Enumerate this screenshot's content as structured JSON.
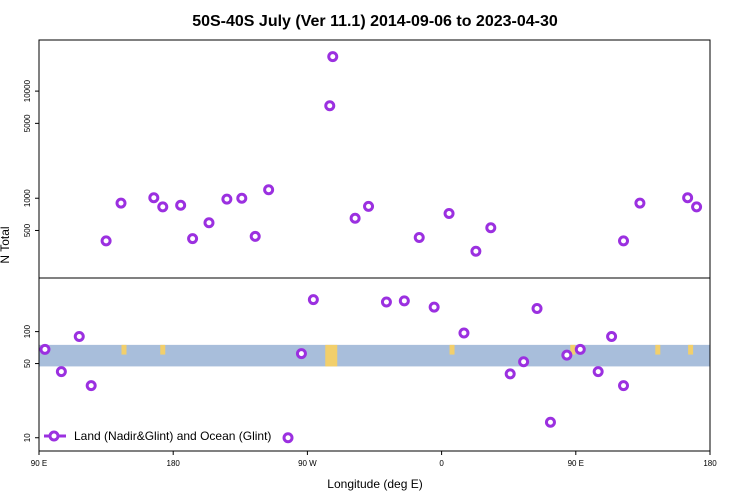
{
  "chart_data": {
    "type": "scatter",
    "title": "50S-40S July (Ver 11.1)   2014-09-06 to 2023-04-30",
    "xlabel": "Longitude (deg E)",
    "ylabel": "N Total",
    "x_ticks": [
      {
        "lon": 90,
        "label": "90 E"
      },
      {
        "lon": 180,
        "label": "180"
      },
      {
        "lon": 270,
        "label": "90 W"
      },
      {
        "lon": 360,
        "label": "0"
      },
      {
        "lon": 450,
        "label": "90 E"
      },
      {
        "lon": 540,
        "label": "180"
      }
    ],
    "xlim": [
      90,
      540
    ],
    "top_panel": {
      "scale": "log",
      "ylim": [
        180,
        30000
      ],
      "y_ticks": [
        {
          "value": 500,
          "label": "500"
        },
        {
          "value": 1000,
          "label": "1000"
        },
        {
          "value": 5000,
          "label": "5000"
        },
        {
          "value": 10000,
          "label": "10000"
        }
      ]
    },
    "bottom_panel": {
      "scale": "log",
      "ylim": [
        7.5,
        320
      ],
      "y_ticks": [
        {
          "value": 10,
          "label": "10"
        },
        {
          "value": 50,
          "label": "50"
        },
        {
          "value": 100,
          "label": "100"
        }
      ],
      "band": {
        "from": 47,
        "to": 75,
        "color": "#a8bedb"
      }
    },
    "land_patches": [
      {
        "lon": 147,
        "label": ""
      },
      {
        "lon": 173,
        "label": ""
      },
      {
        "lon": 286,
        "label": ""
      },
      {
        "lon": 367,
        "label": ""
      },
      {
        "lon": 448,
        "label": ""
      },
      {
        "lon": 505,
        "label": ""
      },
      {
        "lon": 527,
        "label": ""
      }
    ],
    "series": [
      {
        "name": "Land (Nadir&Glint) and Ocean (Glint)",
        "color": "#9b30e0",
        "marker": "ring",
        "top_points": [
          {
            "lon": 135,
            "value": 400
          },
          {
            "lon": 145,
            "value": 900
          },
          {
            "lon": 167,
            "value": 1010
          },
          {
            "lon": 173,
            "value": 830
          },
          {
            "lon": 185,
            "value": 860
          },
          {
            "lon": 193,
            "value": 420
          },
          {
            "lon": 204,
            "value": 590
          },
          {
            "lon": 216,
            "value": 980
          },
          {
            "lon": 226,
            "value": 1000
          },
          {
            "lon": 235,
            "value": 440
          },
          {
            "lon": 244,
            "value": 1200
          },
          {
            "lon": 287,
            "value": 21000
          },
          {
            "lon": 285,
            "value": 7300
          },
          {
            "lon": 302,
            "value": 650
          },
          {
            "lon": 311,
            "value": 840
          },
          {
            "lon": 345,
            "value": 430
          },
          {
            "lon": 365,
            "value": 720
          },
          {
            "lon": 383,
            "value": 320
          },
          {
            "lon": 393,
            "value": 530
          },
          {
            "lon": 482,
            "value": 400
          },
          {
            "lon": 493,
            "value": 900
          },
          {
            "lon": 525,
            "value": 1010
          },
          {
            "lon": 531,
            "value": 830
          }
        ],
        "bottom_points": [
          {
            "lon": 94,
            "value": 68
          },
          {
            "lon": 105,
            "value": 42
          },
          {
            "lon": 117,
            "value": 90
          },
          {
            "lon": 125,
            "value": 31
          },
          {
            "lon": 257,
            "value": 10
          },
          {
            "lon": 266,
            "value": 62
          },
          {
            "lon": 274,
            "value": 200
          },
          {
            "lon": 323,
            "value": 190
          },
          {
            "lon": 335,
            "value": 195
          },
          {
            "lon": 355,
            "value": 170
          },
          {
            "lon": 375,
            "value": 97
          },
          {
            "lon": 406,
            "value": 40
          },
          {
            "lon": 415,
            "value": 52
          },
          {
            "lon": 424,
            "value": 165
          },
          {
            "lon": 433,
            "value": 14
          },
          {
            "lon": 444,
            "value": 60
          },
          {
            "lon": 453,
            "value": 68
          },
          {
            "lon": 465,
            "value": 42
          },
          {
            "lon": 474,
            "value": 90
          },
          {
            "lon": 482,
            "value": 31
          }
        ]
      }
    ],
    "legend": {
      "position": "bottom-left",
      "label": "Land (Nadir&Glint) and Ocean (Glint)"
    },
    "grid": false
  }
}
